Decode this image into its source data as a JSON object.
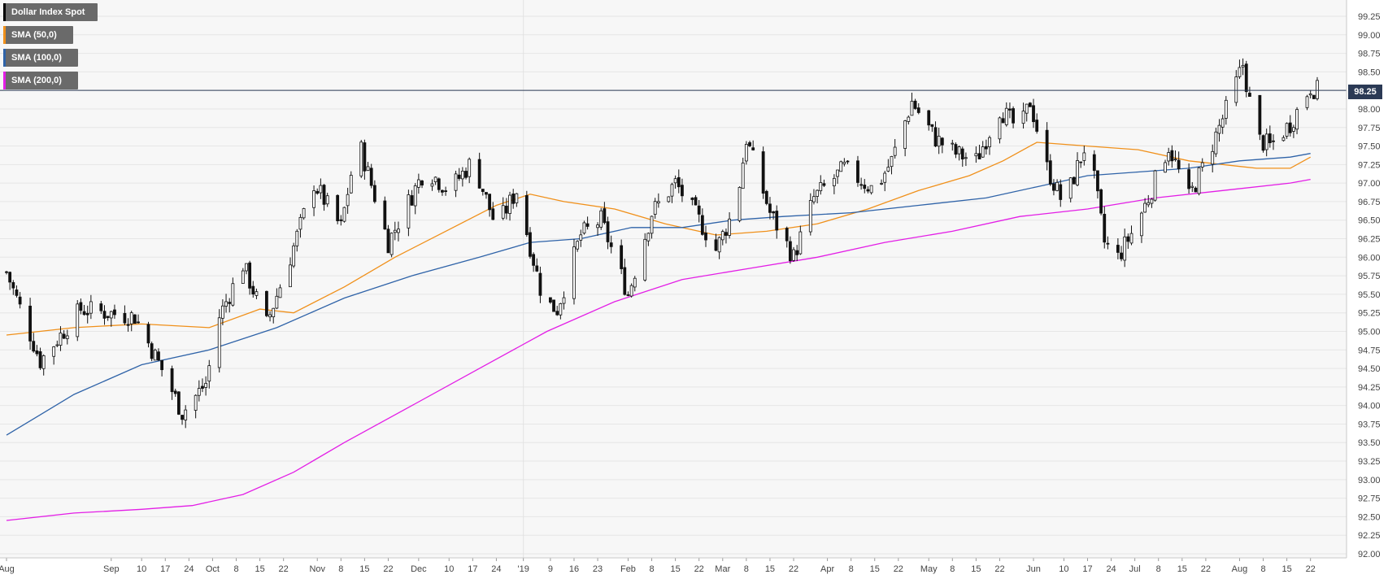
{
  "chart_data": {
    "type": "candlestick",
    "title": "Dollar Index Spot",
    "instrument": "Dollar Index Spot",
    "last_price": 98.25,
    "last_price_label": "98.25",
    "ylim": [
      92.0,
      99.25
    ],
    "y_ticks": [
      "99.25",
      "99.00",
      "98.75",
      "98.50",
      "98.25",
      "98.00",
      "97.75",
      "97.50",
      "97.25",
      "97.00",
      "96.75",
      "96.50",
      "96.25",
      "96.00",
      "95.75",
      "95.50",
      "95.25",
      "95.00",
      "94.75",
      "94.50",
      "94.25",
      "94.00",
      "93.75",
      "93.50",
      "93.25",
      "93.00",
      "92.75",
      "92.50",
      "92.25",
      "92.00"
    ],
    "x_ticks": [
      {
        "label": "Aug",
        "day": 0
      },
      {
        "label": "Sep",
        "day": 31
      },
      {
        "label": "10",
        "day": 40
      },
      {
        "label": "17",
        "day": 47
      },
      {
        "label": "24",
        "day": 54
      },
      {
        "label": "Oct",
        "day": 61
      },
      {
        "label": "8",
        "day": 68
      },
      {
        "label": "15",
        "day": 75
      },
      {
        "label": "22",
        "day": 82
      },
      {
        "label": "Nov",
        "day": 92
      },
      {
        "label": "8",
        "day": 99
      },
      {
        "label": "15",
        "day": 106
      },
      {
        "label": "22",
        "day": 113
      },
      {
        "label": "Dec",
        "day": 122
      },
      {
        "label": "10",
        "day": 131
      },
      {
        "label": "17",
        "day": 138
      },
      {
        "label": "24",
        "day": 145
      },
      {
        "label": "'19",
        "day": 153
      },
      {
        "label": "9",
        "day": 161
      },
      {
        "label": "16",
        "day": 168
      },
      {
        "label": "23",
        "day": 175
      },
      {
        "label": "Feb",
        "day": 184
      },
      {
        "label": "8",
        "day": 191
      },
      {
        "label": "15",
        "day": 198
      },
      {
        "label": "22",
        "day": 205
      },
      {
        "label": "Mar",
        "day": 212
      },
      {
        "label": "8",
        "day": 219
      },
      {
        "label": "15",
        "day": 226
      },
      {
        "label": "22",
        "day": 233
      },
      {
        "label": "Apr",
        "day": 243
      },
      {
        "label": "8",
        "day": 250
      },
      {
        "label": "15",
        "day": 257
      },
      {
        "label": "22",
        "day": 264
      },
      {
        "label": "May",
        "day": 273
      },
      {
        "label": "8",
        "day": 280
      },
      {
        "label": "15",
        "day": 287
      },
      {
        "label": "22",
        "day": 294
      },
      {
        "label": "Jun",
        "day": 304
      },
      {
        "label": "10",
        "day": 313
      },
      {
        "label": "17",
        "day": 320
      },
      {
        "label": "24",
        "day": 327
      },
      {
        "label": "Jul",
        "day": 334
      },
      {
        "label": "8",
        "day": 341
      },
      {
        "label": "15",
        "day": 348
      },
      {
        "label": "22",
        "day": 355
      },
      {
        "label": "Aug",
        "day": 365
      },
      {
        "label": "8",
        "day": 372
      },
      {
        "label": "15",
        "day": 379
      },
      {
        "label": "22",
        "day": 386
      }
    ],
    "x_range_days": [
      0,
      388
    ],
    "key_points": [
      {
        "day": 0,
        "close": 95.8
      },
      {
        "day": 10,
        "close": 94.6
      },
      {
        "day": 22,
        "close": 95.3
      },
      {
        "day": 38,
        "close": 95.2
      },
      {
        "day": 47,
        "close": 94.4
      },
      {
        "day": 52,
        "close": 93.9
      },
      {
        "day": 59,
        "close": 94.3
      },
      {
        "day": 63,
        "close": 95.2
      },
      {
        "day": 70,
        "close": 95.9
      },
      {
        "day": 77,
        "close": 95.1
      },
      {
        "day": 84,
        "close": 96.0
      },
      {
        "day": 91,
        "close": 97.0
      },
      {
        "day": 99,
        "close": 96.4
      },
      {
        "day": 104,
        "close": 97.6
      },
      {
        "day": 113,
        "close": 96.2
      },
      {
        "day": 124,
        "close": 97.2
      },
      {
        "day": 131,
        "close": 96.9
      },
      {
        "day": 138,
        "close": 97.3
      },
      {
        "day": 145,
        "close": 96.4
      },
      {
        "day": 151,
        "close": 96.9
      },
      {
        "day": 159,
        "close": 95.4
      },
      {
        "day": 163,
        "close": 95.3
      },
      {
        "day": 170,
        "close": 96.3
      },
      {
        "day": 176,
        "close": 96.5
      },
      {
        "day": 184,
        "close": 95.5
      },
      {
        "day": 191,
        "close": 96.6
      },
      {
        "day": 198,
        "close": 97.0
      },
      {
        "day": 205,
        "close": 96.5
      },
      {
        "day": 210,
        "close": 96.1
      },
      {
        "day": 216,
        "close": 96.7
      },
      {
        "day": 219,
        "close": 97.6
      },
      {
        "day": 226,
        "close": 96.6
      },
      {
        "day": 233,
        "close": 96.0
      },
      {
        "day": 239,
        "close": 96.8
      },
      {
        "day": 248,
        "close": 97.2
      },
      {
        "day": 257,
        "close": 96.9
      },
      {
        "day": 262,
        "close": 97.3
      },
      {
        "day": 268,
        "close": 98.1
      },
      {
        "day": 275,
        "close": 97.6
      },
      {
        "day": 281,
        "close": 97.4
      },
      {
        "day": 287,
        "close": 97.3
      },
      {
        "day": 294,
        "close": 98.0
      },
      {
        "day": 300,
        "close": 97.7
      },
      {
        "day": 303,
        "close": 98.1
      },
      {
        "day": 308,
        "close": 97.2
      },
      {
        "day": 313,
        "close": 96.7
      },
      {
        "day": 320,
        "close": 97.6
      },
      {
        "day": 325,
        "close": 96.2
      },
      {
        "day": 329,
        "close": 96.0
      },
      {
        "day": 334,
        "close": 96.4
      },
      {
        "day": 338,
        "close": 96.8
      },
      {
        "day": 344,
        "close": 97.5
      },
      {
        "day": 350,
        "close": 96.8
      },
      {
        "day": 355,
        "close": 97.3
      },
      {
        "day": 362,
        "close": 98.1
      },
      {
        "day": 366,
        "close": 98.6
      },
      {
        "day": 370,
        "close": 97.6
      },
      {
        "day": 374,
        "close": 97.5
      },
      {
        "day": 380,
        "close": 97.8
      },
      {
        "day": 386,
        "close": 98.3
      },
      {
        "day": 388,
        "close": 98.25
      }
    ],
    "series": [
      {
        "name": "SMA (50,0)",
        "color": "#f0901a",
        "points": [
          [
            0,
            94.95
          ],
          [
            20,
            95.05
          ],
          [
            40,
            95.1
          ],
          [
            60,
            95.05
          ],
          [
            75,
            95.3
          ],
          [
            85,
            95.25
          ],
          [
            100,
            95.6
          ],
          [
            115,
            96.0
          ],
          [
            130,
            96.35
          ],
          [
            145,
            96.7
          ],
          [
            155,
            96.85
          ],
          [
            165,
            96.75
          ],
          [
            180,
            96.65
          ],
          [
            195,
            96.45
          ],
          [
            210,
            96.3
          ],
          [
            225,
            96.35
          ],
          [
            240,
            96.45
          ],
          [
            255,
            96.65
          ],
          [
            270,
            96.9
          ],
          [
            285,
            97.1
          ],
          [
            295,
            97.3
          ],
          [
            305,
            97.55
          ],
          [
            320,
            97.5
          ],
          [
            335,
            97.45
          ],
          [
            350,
            97.3
          ],
          [
            360,
            97.25
          ],
          [
            370,
            97.2
          ],
          [
            380,
            97.2
          ],
          [
            386,
            97.35
          ]
        ]
      },
      {
        "name": "SMA (100,0)",
        "color": "#2f63a8",
        "points": [
          [
            0,
            93.6
          ],
          [
            20,
            94.15
          ],
          [
            40,
            94.55
          ],
          [
            60,
            94.75
          ],
          [
            80,
            95.05
          ],
          [
            100,
            95.45
          ],
          [
            120,
            95.75
          ],
          [
            140,
            96.0
          ],
          [
            155,
            96.2
          ],
          [
            170,
            96.25
          ],
          [
            185,
            96.4
          ],
          [
            200,
            96.4
          ],
          [
            215,
            96.5
          ],
          [
            230,
            96.55
          ],
          [
            250,
            96.6
          ],
          [
            270,
            96.7
          ],
          [
            290,
            96.8
          ],
          [
            305,
            96.95
          ],
          [
            320,
            97.1
          ],
          [
            335,
            97.15
          ],
          [
            350,
            97.2
          ],
          [
            365,
            97.3
          ],
          [
            380,
            97.35
          ],
          [
            386,
            97.4
          ]
        ]
      },
      {
        "name": "SMA (200,0)",
        "color": "#e31ee6",
        "points": [
          [
            0,
            92.45
          ],
          [
            20,
            92.55
          ],
          [
            40,
            92.6
          ],
          [
            55,
            92.65
          ],
          [
            70,
            92.8
          ],
          [
            85,
            93.1
          ],
          [
            100,
            93.5
          ],
          [
            120,
            94.0
          ],
          [
            140,
            94.5
          ],
          [
            160,
            95.0
          ],
          [
            180,
            95.4
          ],
          [
            200,
            95.7
          ],
          [
            220,
            95.85
          ],
          [
            240,
            96.0
          ],
          [
            260,
            96.2
          ],
          [
            280,
            96.35
          ],
          [
            300,
            96.55
          ],
          [
            320,
            96.65
          ],
          [
            340,
            96.8
          ],
          [
            360,
            96.9
          ],
          [
            380,
            97.0
          ],
          [
            386,
            97.05
          ]
        ]
      }
    ],
    "legend": [
      {
        "label": "Dollar Index Spot",
        "color": "#000000"
      },
      {
        "label": "SMA (50,0)",
        "color": "#f0901a"
      },
      {
        "label": "SMA (100,0)",
        "color": "#2f63a8"
      },
      {
        "label": "SMA (200,0)",
        "color": "#e31ee6"
      }
    ],
    "grid": true,
    "legend_placement": "top-left",
    "axis_placement": "right"
  }
}
